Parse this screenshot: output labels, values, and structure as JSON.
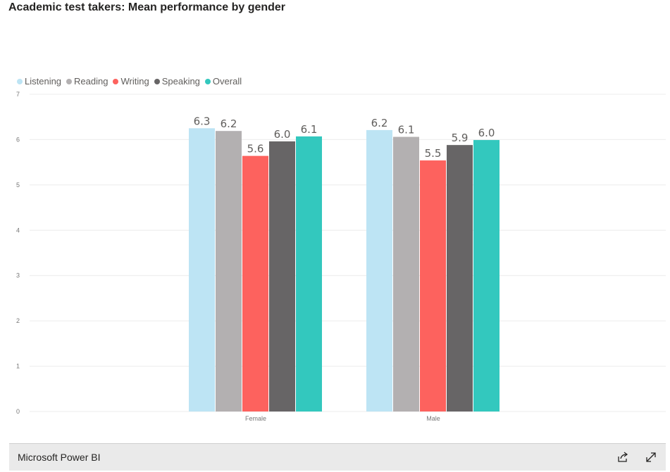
{
  "footer": {
    "brand": "Microsoft Power BI",
    "share_icon": "share-icon",
    "fullscreen_icon": "expand-icon"
  },
  "chart_data": {
    "type": "bar",
    "title": "Academic test takers: Mean performance by gender",
    "xlabel": "",
    "ylabel": "",
    "ylim": [
      0,
      7
    ],
    "yticks": [
      "0",
      "1",
      "2",
      "3",
      "4",
      "5",
      "6",
      "7"
    ],
    "categories": [
      "Female",
      "Male"
    ],
    "legend_position": "top-left",
    "grid": true,
    "series": [
      {
        "name": "Listening",
        "color": "#bde4f4",
        "values": [
          6.25,
          6.21
        ],
        "labels": [
          "6.3",
          "6.2"
        ]
      },
      {
        "name": "Reading",
        "color": "#b3b0b1",
        "values": [
          6.19,
          6.06
        ],
        "labels": [
          "6.2",
          "6.1"
        ]
      },
      {
        "name": "Writing",
        "color": "#fd625e",
        "values": [
          5.64,
          5.54
        ],
        "labels": [
          "5.6",
          "5.5"
        ]
      },
      {
        "name": "Speaking",
        "color": "#676566",
        "values": [
          5.96,
          5.88
        ],
        "labels": [
          "6.0",
          "5.9"
        ]
      },
      {
        "name": "Overall",
        "color": "#33c8be",
        "values": [
          6.07,
          5.99
        ],
        "labels": [
          "6.1",
          "6.0"
        ]
      }
    ]
  }
}
